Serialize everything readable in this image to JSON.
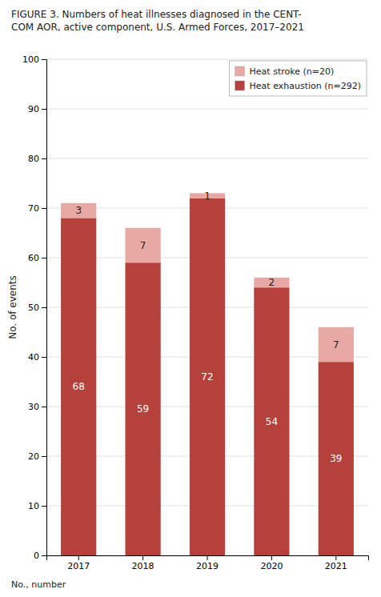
{
  "chart_data": {
    "type": "bar",
    "stacked": true,
    "title": "FIGURE 3. Numbers of heat illnesses diagnosed in the CENT-\nCOM AOR, active component, U.S. Armed Forces, 2017–2021",
    "ylabel": "No. of events",
    "annotations": [
      "No., number"
    ],
    "categories": [
      "2017",
      "2018",
      "2019",
      "2020",
      "2021"
    ],
    "series": [
      {
        "name": "Heat exhaustion (n=292)",
        "color": "#b5413a",
        "values": [
          68,
          59,
          72,
          54,
          39
        ]
      },
      {
        "name": "Heat stroke (n=20)",
        "color": "#e8a8a4",
        "values": [
          3,
          7,
          1,
          2,
          7
        ]
      }
    ],
    "ylim": [
      0,
      100
    ],
    "yticks": [
      0,
      10,
      20,
      30,
      40,
      50,
      60,
      70,
      80,
      90,
      100
    ],
    "grid": true,
    "legend": "upper right",
    "data_labels": true
  }
}
